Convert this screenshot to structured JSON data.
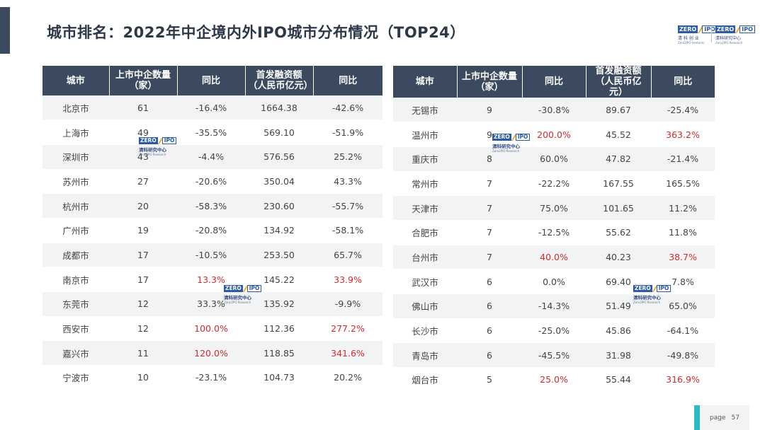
{
  "title": "城市排名：2022年中企境内外IPO城市分布情况（TOP24）",
  "brand": {
    "logo_left": "ZERO",
    "logo_right": "IPO",
    "left_name_cn": "清 科 创 业",
    "left_name_en": "Zero2IPO Ventures",
    "right_name_cn": "清科研究中心",
    "right_name_en": "Zero2IPO Research"
  },
  "watermark": {
    "logo_left": "ZERO",
    "logo_right": "IPO",
    "name_cn": "清科研究中心",
    "name_en": "Zero2IPO Research"
  },
  "headers": {
    "city": "城市",
    "count": "上市中企数量（家）",
    "count_yoy": "同比",
    "funding": "首发融资额（人民币亿元）",
    "funding_yoy": "同比"
  },
  "left_table": [
    {
      "city": "北京市",
      "count": "61",
      "count_yoy": "-16.4%",
      "funding": "1664.38",
      "funding_yoy": "-42.6%"
    },
    {
      "city": "上海市",
      "count": "49",
      "count_yoy": "-35.5%",
      "funding": "569.10",
      "funding_yoy": "-51.9%"
    },
    {
      "city": "深圳市",
      "count": "43",
      "count_yoy": "-4.4%",
      "funding": "576.56",
      "funding_yoy": "25.2%"
    },
    {
      "city": "苏州市",
      "count": "27",
      "count_yoy": "-20.6%",
      "funding": "350.04",
      "funding_yoy": "43.3%"
    },
    {
      "city": "杭州市",
      "count": "20",
      "count_yoy": "-58.3%",
      "funding": "230.60",
      "funding_yoy": "-55.7%"
    },
    {
      "city": "广州市",
      "count": "19",
      "count_yoy": "-20.8%",
      "funding": "134.92",
      "funding_yoy": "-58.1%"
    },
    {
      "city": "成都市",
      "count": "17",
      "count_yoy": "-10.5%",
      "funding": "253.50",
      "funding_yoy": "65.7%"
    },
    {
      "city": "南京市",
      "count": "17",
      "count_yoy": "13.3%",
      "funding": "145.22",
      "funding_yoy": "33.9%",
      "count_yoy_red": true,
      "funding_yoy_red": true
    },
    {
      "city": "东莞市",
      "count": "12",
      "count_yoy": "33.3%",
      "funding": "135.92",
      "funding_yoy": "-9.9%"
    },
    {
      "city": "西安市",
      "count": "12",
      "count_yoy": "100.0%",
      "funding": "112.36",
      "funding_yoy": "277.2%",
      "count_yoy_red": true,
      "funding_yoy_red": true
    },
    {
      "city": "嘉兴市",
      "count": "11",
      "count_yoy": "120.0%",
      "funding": "118.85",
      "funding_yoy": "341.6%",
      "count_yoy_red": true,
      "funding_yoy_red": true
    },
    {
      "city": "宁波市",
      "count": "10",
      "count_yoy": "-23.1%",
      "funding": "104.73",
      "funding_yoy": "20.2%"
    }
  ],
  "right_table": [
    {
      "city": "无锡市",
      "count": "9",
      "count_yoy": "-30.8%",
      "funding": "89.67",
      "funding_yoy": "-25.4%"
    },
    {
      "city": "温州市",
      "count": "9",
      "count_yoy": "200.0%",
      "funding": "45.52",
      "funding_yoy": "363.2%",
      "count_yoy_red": true,
      "funding_yoy_red": true
    },
    {
      "city": "重庆市",
      "count": "8",
      "count_yoy": "60.0%",
      "funding": "47.82",
      "funding_yoy": "-21.4%"
    },
    {
      "city": "常州市",
      "count": "7",
      "count_yoy": "-22.2%",
      "funding": "167.55",
      "funding_yoy": "165.5%"
    },
    {
      "city": "天津市",
      "count": "7",
      "count_yoy": "75.0%",
      "funding": "101.65",
      "funding_yoy": "11.2%"
    },
    {
      "city": "合肥市",
      "count": "7",
      "count_yoy": "-12.5%",
      "funding": "55.62",
      "funding_yoy": "11.8%"
    },
    {
      "city": "台州市",
      "count": "7",
      "count_yoy": "40.0%",
      "funding": "40.23",
      "funding_yoy": "38.7%",
      "count_yoy_red": true,
      "funding_yoy_red": true
    },
    {
      "city": "武汉市",
      "count": "6",
      "count_yoy": "0.0%",
      "funding": "69.40",
      "funding_yoy": "7.8%"
    },
    {
      "city": "佛山市",
      "count": "6",
      "count_yoy": "-14.3%",
      "funding": "51.49",
      "funding_yoy": "65.0%"
    },
    {
      "city": "长沙市",
      "count": "6",
      "count_yoy": "-25.0%",
      "funding": "45.86",
      "funding_yoy": "-64.1%"
    },
    {
      "city": "青岛市",
      "count": "6",
      "count_yoy": "-45.5%",
      "funding": "31.98",
      "funding_yoy": "-49.8%"
    },
    {
      "city": "烟台市",
      "count": "5",
      "count_yoy": "25.0%",
      "funding": "55.44",
      "funding_yoy": "316.9%",
      "count_yoy_red": true,
      "funding_yoy_red": true
    }
  ],
  "footer": {
    "page_label": "page",
    "page_number": "57"
  },
  "colors": {
    "header_bg": "#3b4a5e",
    "highlight": "#d42a2a",
    "page_accent": "#2bbcc8",
    "brand_blue": "#2a5aa8",
    "brand_orange": "#f0a81a"
  }
}
